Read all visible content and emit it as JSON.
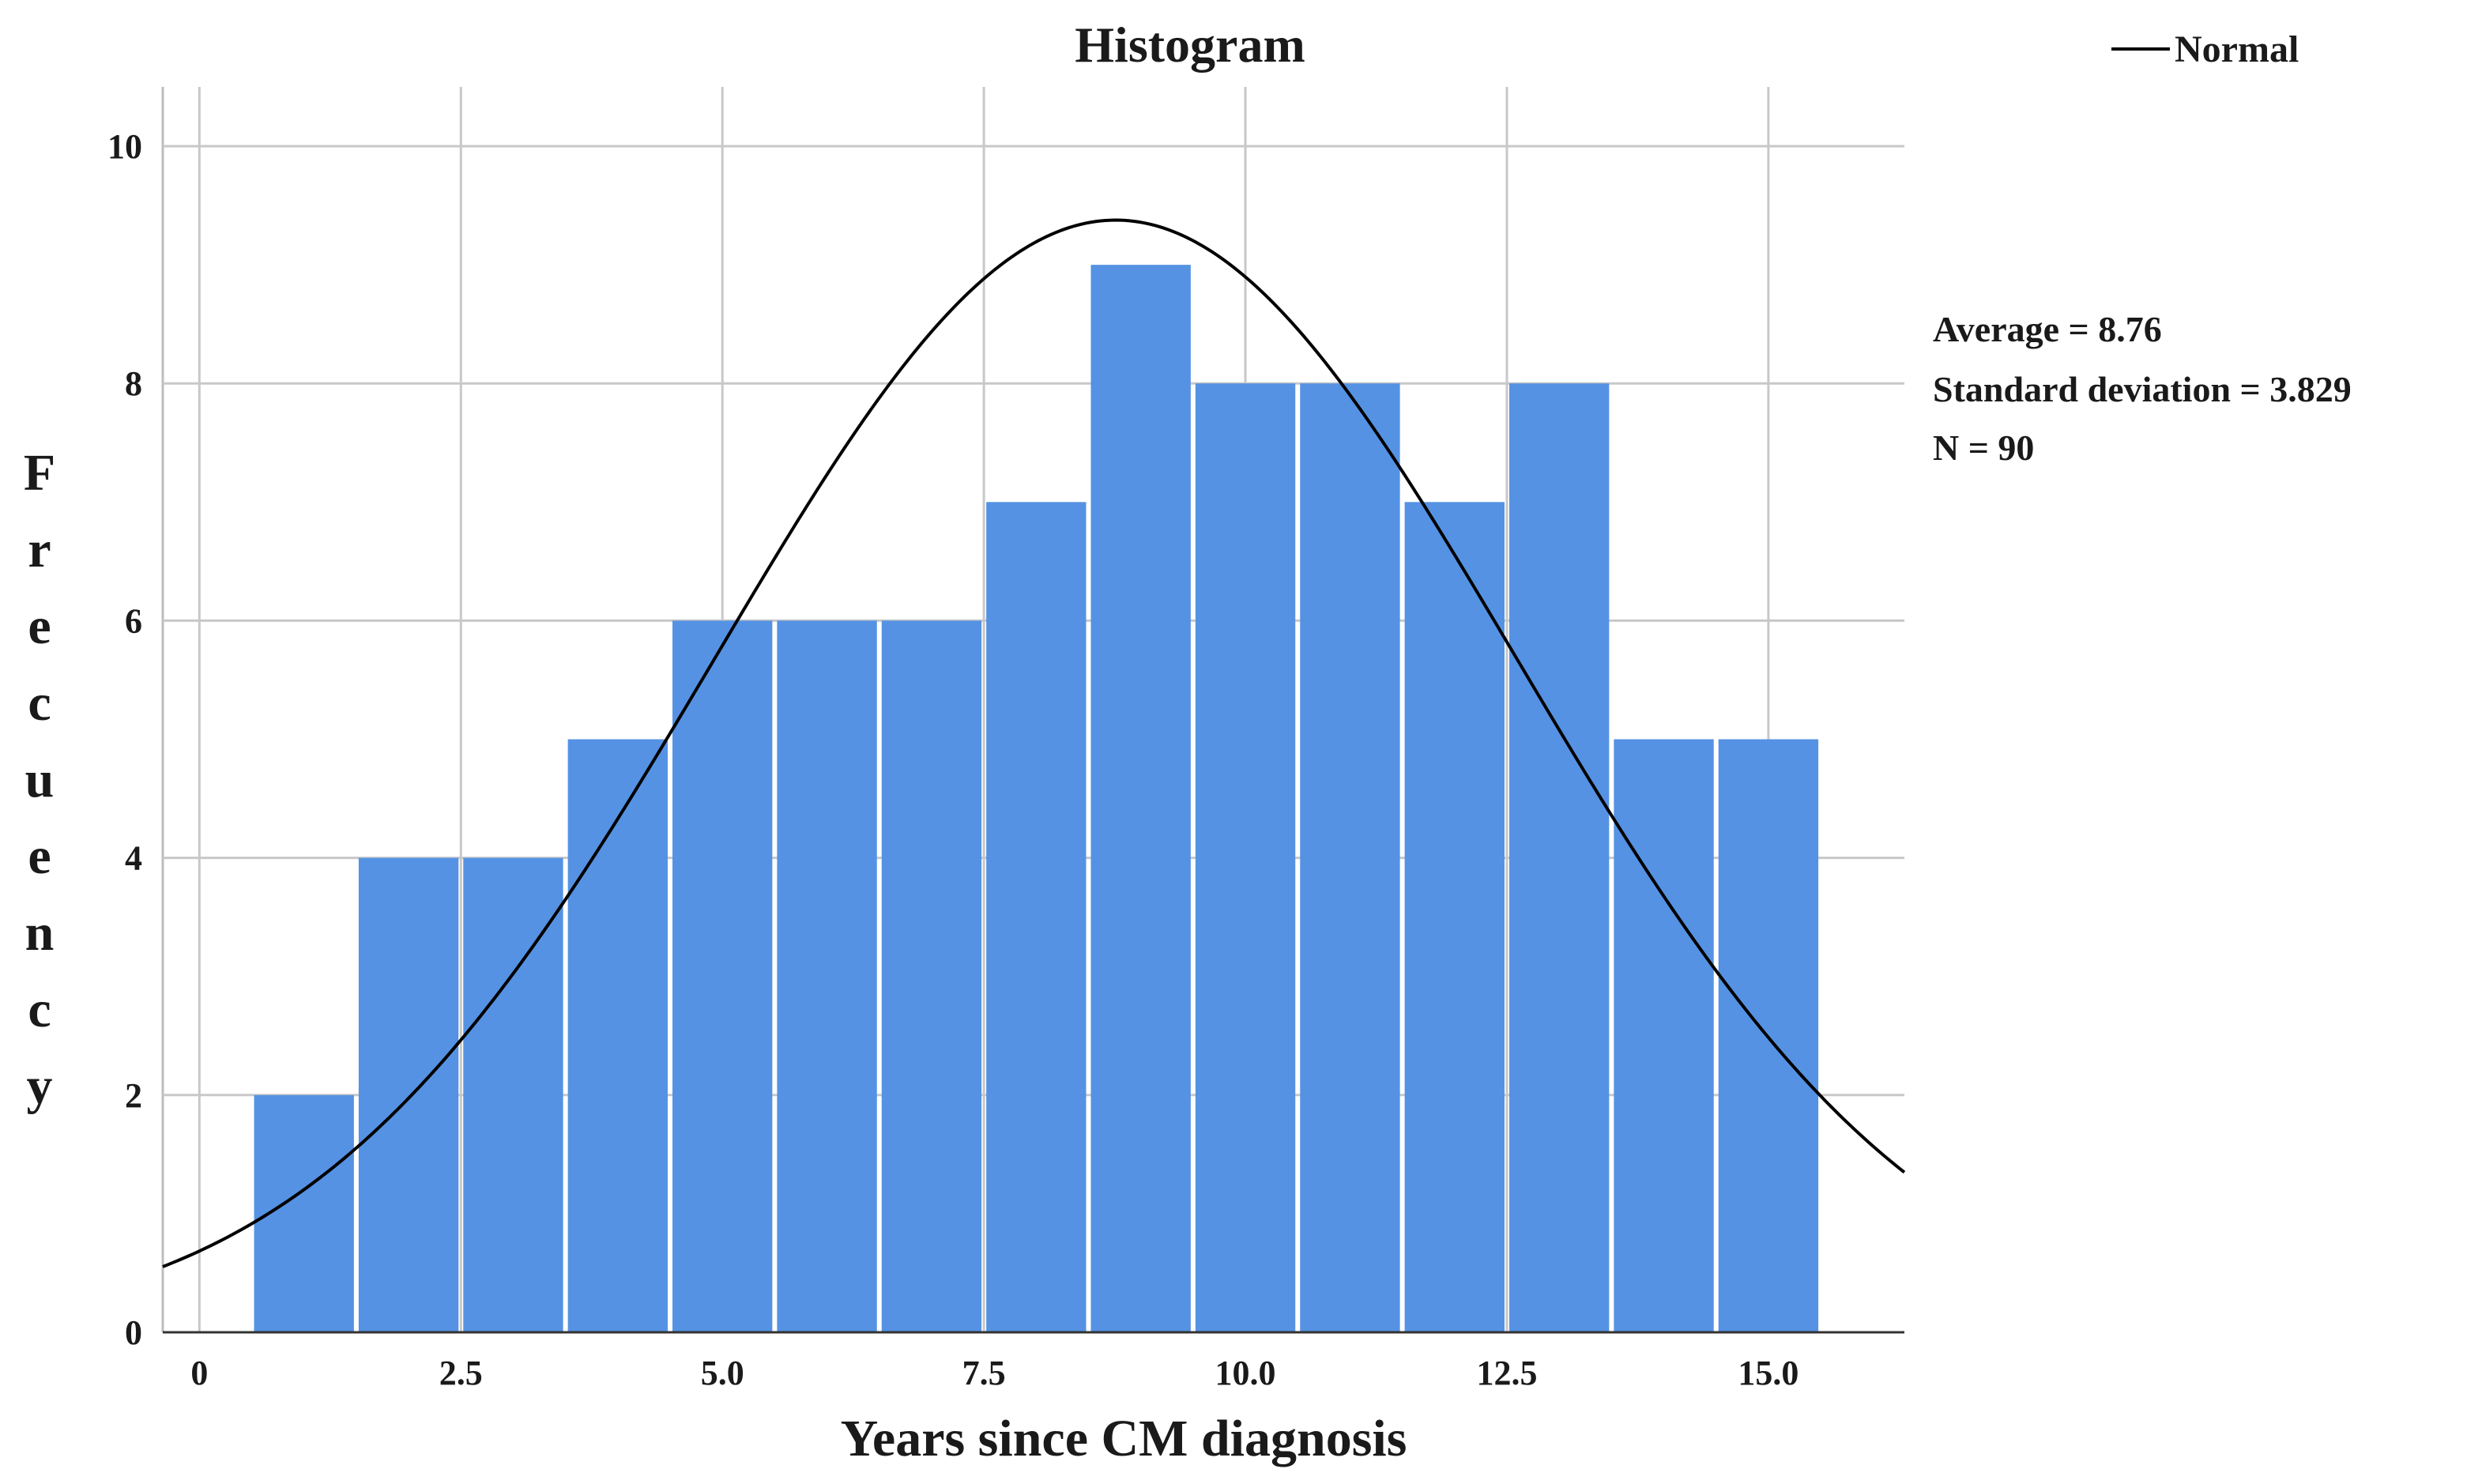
{
  "chart_data": {
    "type": "bar",
    "title": "Histogram",
    "xlabel": "Years since CM diagnosis",
    "ylabel": "Frecuency",
    "x_bin_width": 1,
    "bin_centers": [
      1,
      2,
      3,
      4,
      5,
      6,
      7,
      8,
      9,
      10,
      11,
      12,
      13,
      14,
      15
    ],
    "values": [
      2,
      4,
      4,
      5,
      6,
      6,
      6,
      7,
      9,
      8,
      8,
      7,
      8,
      5,
      5
    ],
    "xlim": [
      -0.35,
      16.3
    ],
    "ylim": [
      0,
      10.5
    ],
    "x_ticks": [
      0,
      2.5,
      5.0,
      7.5,
      10.0,
      12.5,
      15.0
    ],
    "x_tick_labels": [
      "0",
      "2.5",
      "5.0",
      "7.5",
      "10.0",
      "12.5",
      "15.0"
    ],
    "y_ticks": [
      0,
      2,
      4,
      6,
      8,
      10
    ],
    "y_tick_labels": [
      "0",
      "2",
      "4",
      "6",
      "8",
      "10"
    ],
    "grid": true,
    "bar_color": "#5592e3",
    "normal_curve": {
      "label": "Normal",
      "mean": 8.76,
      "sd": 3.829,
      "n": 90,
      "bin_width": 1,
      "color": "#000000"
    },
    "stats": {
      "average_text": "Average = 8.76",
      "sd_text": "Standard deviation = 3.829",
      "n_text": "N = 90"
    },
    "legend": {
      "position": "top-right",
      "entries": [
        "Normal"
      ]
    }
  }
}
